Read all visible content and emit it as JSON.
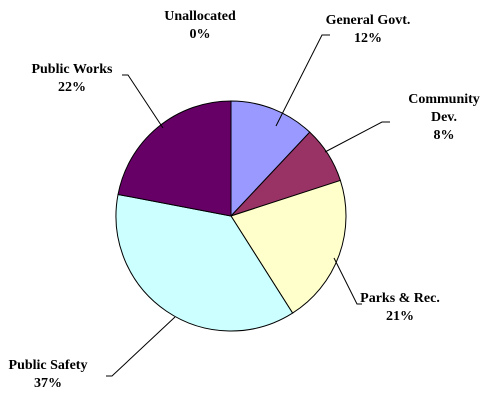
{
  "chart_data": {
    "type": "pie",
    "slices": [
      {
        "label": [
          "General Govt."
        ],
        "value_label": "12%",
        "value": 12,
        "color": "#9999ff"
      },
      {
        "label": [
          "Community",
          "Dev."
        ],
        "value_label": "8%",
        "value": 8,
        "color": "#993366"
      },
      {
        "label": [
          "Parks & Rec."
        ],
        "value_label": "21%",
        "value": 21,
        "color": "#ffffcc"
      },
      {
        "label": [
          "Public Safety"
        ],
        "value_label": "37%",
        "value": 37,
        "color": "#ccffff"
      },
      {
        "label": [
          "Public Works"
        ],
        "value_label": "22%",
        "value": 22,
        "color": "#660066"
      },
      {
        "label": [
          "Unallocated"
        ],
        "value_label": "0%",
        "value": 0,
        "color": "#ffffff"
      }
    ],
    "start_angle_deg": 0,
    "direction": "clockwise"
  }
}
